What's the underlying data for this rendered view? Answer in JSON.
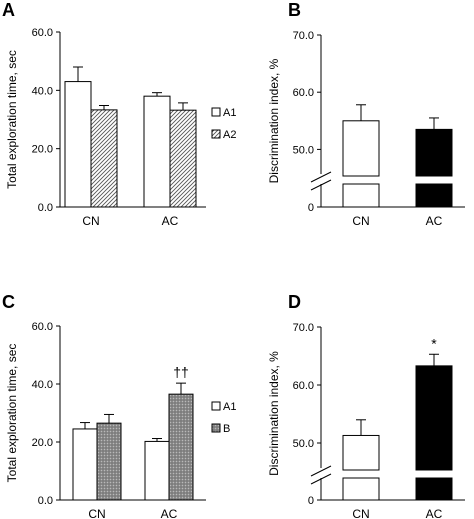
{
  "chart_data": [
    {
      "panel": "A",
      "type": "bar",
      "ylabel": "Total exploration time, sec",
      "yticks": [
        "0.0",
        "20.0",
        "40.0",
        "60.0"
      ],
      "ylim": [
        0,
        60
      ],
      "categories": [
        "CN",
        "AC"
      ],
      "series": [
        {
          "name": "A1",
          "fill": "white",
          "values": [
            43.0,
            38.0
          ],
          "errors": [
            5.0,
            1.2
          ]
        },
        {
          "name": "A2",
          "fill": "hatch",
          "values": [
            33.3,
            33.2
          ],
          "errors": [
            1.5,
            2.5
          ]
        }
      ],
      "legend": "right",
      "annotations": []
    },
    {
      "panel": "B",
      "type": "bar",
      "ylabel": "Discrimination index, %",
      "yticks": [
        "0",
        "50.0",
        "60.0",
        "70.0"
      ],
      "ylim": [
        45,
        70
      ],
      "axis_break": true,
      "categories": [
        "CN",
        "AC"
      ],
      "series": [
        {
          "name": "",
          "fills": [
            "white",
            "black"
          ],
          "values": [
            55.0,
            53.5
          ],
          "errors": [
            2.8,
            2.0
          ]
        }
      ],
      "annotations": []
    },
    {
      "panel": "C",
      "type": "bar",
      "ylabel": "Total exploration time, sec",
      "yticks": [
        "0.0",
        "20.0",
        "40.0",
        "60.0"
      ],
      "ylim": [
        0,
        60
      ],
      "categories": [
        "CN",
        "AC"
      ],
      "series": [
        {
          "name": "A1",
          "fill": "white",
          "values": [
            24.5,
            20.2
          ],
          "errors": [
            2.2,
            1.0
          ]
        },
        {
          "name": "B",
          "fill": "dotted",
          "values": [
            26.5,
            36.5
          ],
          "errors": [
            3.0,
            3.8
          ]
        }
      ],
      "legend": "right",
      "annotations": [
        {
          "text": "††",
          "category": "AC",
          "series": "B"
        }
      ]
    },
    {
      "panel": "D",
      "type": "bar",
      "ylabel": "Discrimination index, %",
      "yticks": [
        "0",
        "50.0",
        "60.0",
        "70.0"
      ],
      "ylim": [
        45,
        70
      ],
      "axis_break": true,
      "categories": [
        "CN",
        "AC"
      ],
      "series": [
        {
          "name": "",
          "fills": [
            "white",
            "black"
          ],
          "values": [
            51.3,
            63.3
          ],
          "errors": [
            2.7,
            2.0
          ]
        }
      ],
      "annotations": [
        {
          "text": "*",
          "category": "AC"
        }
      ]
    }
  ]
}
